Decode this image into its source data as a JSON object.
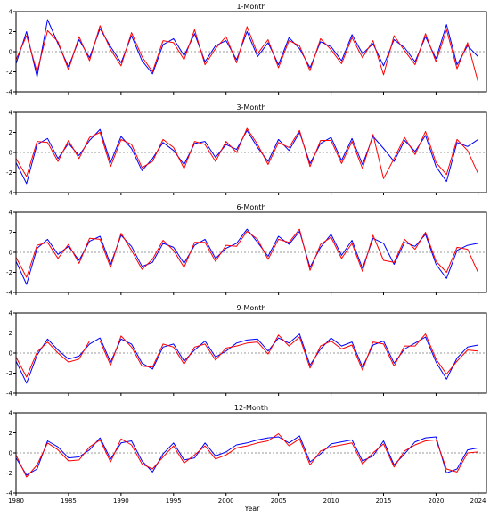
{
  "figure": {
    "xlabel": "Year"
  },
  "chart_data": [
    {
      "type": "line",
      "title": "1-Month",
      "ylim": [
        -4,
        4
      ],
      "yticks": [
        4,
        2,
        0,
        -2,
        -4
      ],
      "xlim": [
        1980,
        2024.8
      ],
      "xticks": [
        1980,
        1985,
        1990,
        1995,
        2000,
        2005,
        2010,
        2015,
        2020,
        2024
      ],
      "grid": false,
      "series": [
        {
          "color": "#0000ff",
          "x": [
            1980,
            1981,
            1982,
            1983,
            1984,
            1985,
            1986,
            1987,
            1988,
            1989,
            1990,
            1991,
            1992,
            1993,
            1994,
            1995,
            1996,
            1997,
            1998,
            1999,
            2000,
            2001,
            2002,
            2003,
            2004,
            2005,
            2006,
            2007,
            2008,
            2009,
            2010,
            2011,
            2012,
            2013,
            2014,
            2015,
            2016,
            2017,
            2018,
            2019,
            2020,
            2021,
            2022,
            2023,
            2024
          ],
          "y": [
            -1.2,
            2.0,
            -2.5,
            3.2,
            0.8,
            -1.5,
            1.2,
            -0.6,
            2.3,
            0.5,
            -1.1,
            1.6,
            -0.9,
            -2.2,
            0.7,
            1.3,
            -0.4,
            1.8,
            -1.0,
            0.6,
            1.1,
            -0.8,
            2.0,
            -0.5,
            0.9,
            -1.3,
            1.4,
            0.3,
            -1.6,
            1.0,
            0.5,
            -0.9,
            1.7,
            -0.2,
            0.8,
            -1.4,
            1.2,
            0.4,
            -1.0,
            1.5,
            -0.7,
            2.7,
            -1.3,
            0.6,
            -0.5
          ]
        },
        {
          "color": "#ff0000",
          "x": [
            1980,
            1981,
            1982,
            1983,
            1984,
            1985,
            1986,
            1987,
            1988,
            1989,
            1990,
            1991,
            1992,
            1993,
            1994,
            1995,
            1996,
            1997,
            1998,
            1999,
            2000,
            2001,
            2002,
            2003,
            2004,
            2005,
            2006,
            2007,
            2008,
            2009,
            2010,
            2011,
            2012,
            2013,
            2014,
            2015,
            2016,
            2017,
            2018,
            2019,
            2020,
            2021,
            2022,
            2023,
            2024
          ],
          "y": [
            -0.8,
            1.6,
            -2.0,
            2.1,
            1.0,
            -1.8,
            1.5,
            -0.9,
            2.6,
            0.2,
            -1.4,
            1.9,
            -0.5,
            -2.0,
            1.1,
            0.9,
            -0.8,
            2.2,
            -1.3,
            0.3,
            1.5,
            -1.1,
            2.5,
            -0.2,
            1.2,
            -1.6,
            1.1,
            0.6,
            -1.9,
            1.3,
            0.2,
            -1.2,
            1.4,
            -0.6,
            1.1,
            -2.3,
            1.6,
            0.1,
            -1.3,
            1.8,
            -1.0,
            2.2,
            -1.7,
            0.9,
            -3.0
          ]
        }
      ]
    },
    {
      "type": "line",
      "title": "3-Month",
      "ylim": [
        -4,
        4
      ],
      "yticks": [
        4,
        2,
        0,
        -2,
        -4
      ],
      "xlim": [
        1980,
        2024.8
      ],
      "xticks": [
        1980,
        1985,
        1990,
        1995,
        2000,
        2005,
        2010,
        2015,
        2020,
        2024
      ],
      "grid": false,
      "series": [
        {
          "color": "#0000ff",
          "x": [
            1980,
            1981,
            1982,
            1983,
            1984,
            1985,
            1986,
            1987,
            1988,
            1989,
            1990,
            1991,
            1992,
            1993,
            1994,
            1995,
            1996,
            1997,
            1998,
            1999,
            2000,
            2001,
            2002,
            2003,
            2004,
            2005,
            2006,
            2007,
            2008,
            2009,
            2010,
            2011,
            2012,
            2013,
            2014,
            2015,
            2016,
            2017,
            2018,
            2019,
            2020,
            2021,
            2022,
            2023,
            2024
          ],
          "y": [
            -1.0,
            -3.1,
            0.8,
            1.4,
            -0.6,
            0.9,
            -0.3,
            1.2,
            2.3,
            -1.0,
            1.6,
            0.4,
            -1.8,
            -0.6,
            1.0,
            0.2,
            -1.2,
            0.9,
            1.1,
            -0.5,
            0.8,
            0.3,
            2.2,
            0.5,
            -0.9,
            1.3,
            0.2,
            2.0,
            -1.1,
            0.9,
            1.5,
            -0.8,
            1.4,
            -1.2,
            1.6,
            0.4,
            -0.9,
            1.2,
            0.1,
            1.7,
            -1.4,
            -2.9,
            1.0,
            0.6,
            1.3
          ]
        },
        {
          "color": "#ff0000",
          "x": [
            1980,
            1981,
            1982,
            1983,
            1984,
            1985,
            1986,
            1987,
            1988,
            1989,
            1990,
            1991,
            1992,
            1993,
            1994,
            1995,
            1996,
            1997,
            1998,
            1999,
            2000,
            2001,
            2002,
            2003,
            2004,
            2005,
            2006,
            2007,
            2008,
            2009,
            2010,
            2011,
            2012,
            2013,
            2014,
            2015,
            2016,
            2017,
            2018,
            2019,
            2020,
            2021,
            2022,
            2023,
            2024
          ],
          "y": [
            -0.6,
            -2.4,
            1.1,
            1.0,
            -0.9,
            1.2,
            -0.6,
            1.5,
            2.0,
            -1.4,
            1.3,
            0.8,
            -1.5,
            -0.9,
            1.3,
            0.5,
            -1.6,
            1.1,
            0.8,
            -0.9,
            1.1,
            0.0,
            2.4,
            0.8,
            -1.2,
            1.0,
            0.5,
            2.2,
            -1.4,
            1.2,
            1.2,
            -1.1,
            1.1,
            -1.6,
            1.8,
            -2.6,
            -0.6,
            1.5,
            -0.2,
            2.1,
            -1.0,
            -2.2,
            1.3,
            0.2,
            -2.1
          ]
        }
      ]
    },
    {
      "type": "line",
      "title": "6-Month",
      "ylim": [
        -4,
        4
      ],
      "yticks": [
        4,
        2,
        0,
        -2,
        -4
      ],
      "xlim": [
        1980,
        2024.8
      ],
      "xticks": [
        1980,
        1985,
        1990,
        1995,
        2000,
        2005,
        2010,
        2015,
        2020,
        2024
      ],
      "grid": false,
      "series": [
        {
          "color": "#0000ff",
          "x": [
            1980,
            1981,
            1982,
            1983,
            1984,
            1985,
            1986,
            1987,
            1988,
            1989,
            1990,
            1991,
            1992,
            1993,
            1994,
            1995,
            1996,
            1997,
            1998,
            1999,
            2000,
            2001,
            2002,
            2003,
            2004,
            2005,
            2006,
            2007,
            2008,
            2009,
            2010,
            2011,
            2012,
            2013,
            2014,
            2015,
            2016,
            2017,
            2018,
            2019,
            2020,
            2021,
            2022,
            2023,
            2024
          ],
          "y": [
            -0.9,
            -3.2,
            0.4,
            1.3,
            -0.2,
            0.6,
            -0.8,
            1.1,
            1.6,
            -1.2,
            1.7,
            0.6,
            -1.4,
            -1.0,
            0.9,
            0.5,
            -1.1,
            0.7,
            1.3,
            -0.6,
            0.4,
            0.9,
            2.3,
            1.0,
            -0.4,
            1.6,
            0.8,
            2.1,
            -1.5,
            0.5,
            1.8,
            -0.3,
            1.2,
            -1.6,
            1.4,
            0.9,
            -1.2,
            1.0,
            0.6,
            1.8,
            -1.2,
            -2.6,
            0.2,
            0.7,
            0.9
          ]
        },
        {
          "color": "#ff0000",
          "x": [
            1980,
            1981,
            1982,
            1983,
            1984,
            1985,
            1986,
            1987,
            1988,
            1989,
            1990,
            1991,
            1992,
            1993,
            1994,
            1995,
            1996,
            1997,
            1998,
            1999,
            2000,
            2001,
            2002,
            2003,
            2004,
            2005,
            2006,
            2007,
            2008,
            2009,
            2010,
            2011,
            2012,
            2013,
            2014,
            2015,
            2016,
            2017,
            2018,
            2019,
            2020,
            2021,
            2022,
            2023,
            2024
          ],
          "y": [
            -0.5,
            -2.5,
            0.7,
            1.0,
            -0.6,
            0.8,
            -1.1,
            1.4,
            1.3,
            -1.5,
            1.9,
            0.2,
            -1.7,
            -0.7,
            1.2,
            0.2,
            -1.5,
            1.0,
            1.0,
            -0.9,
            0.7,
            0.6,
            2.1,
            1.3,
            -0.7,
            1.3,
            1.0,
            2.3,
            -1.8,
            0.8,
            1.5,
            -0.6,
            0.9,
            -1.9,
            1.7,
            -0.8,
            -1.0,
            1.3,
            0.3,
            2.0,
            -0.9,
            -2.0,
            0.5,
            0.3,
            -2.0
          ]
        }
      ]
    },
    {
      "type": "line",
      "title": "9-Month",
      "ylim": [
        -4,
        4
      ],
      "yticks": [
        4,
        2,
        0,
        -2,
        -4
      ],
      "xlim": [
        1980,
        2024.8
      ],
      "xticks": [
        1980,
        1985,
        1990,
        1995,
        2000,
        2005,
        2010,
        2015,
        2020,
        2024
      ],
      "grid": false,
      "series": [
        {
          "color": "#0000ff",
          "x": [
            1980,
            1981,
            1982,
            1983,
            1984,
            1985,
            1986,
            1987,
            1988,
            1989,
            1990,
            1991,
            1992,
            1993,
            1994,
            1995,
            1996,
            1997,
            1998,
            1999,
            2000,
            2001,
            2002,
            2003,
            2004,
            2005,
            2006,
            2007,
            2008,
            2009,
            2010,
            2011,
            2012,
            2013,
            2014,
            2015,
            2016,
            2017,
            2018,
            2019,
            2020,
            2021,
            2022,
            2023,
            2024
          ],
          "y": [
            -0.8,
            -3.0,
            -0.2,
            1.4,
            0.3,
            -0.6,
            -0.3,
            0.9,
            1.5,
            -0.9,
            1.4,
            0.9,
            -1.0,
            -1.6,
            0.6,
            0.9,
            -0.8,
            0.3,
            1.2,
            -0.4,
            0.2,
            1.0,
            1.3,
            1.4,
            0.2,
            1.5,
            1.0,
            1.9,
            -1.2,
            0.4,
            1.5,
            0.7,
            1.1,
            -1.4,
            0.8,
            1.2,
            -1.0,
            0.4,
            1.0,
            1.6,
            -0.9,
            -2.6,
            -0.5,
            0.6,
            0.8
          ]
        },
        {
          "color": "#ff0000",
          "x": [
            1980,
            1981,
            1982,
            1983,
            1984,
            1985,
            1986,
            1987,
            1988,
            1989,
            1990,
            1991,
            1992,
            1993,
            1994,
            1995,
            1996,
            1997,
            1998,
            1999,
            2000,
            2001,
            2002,
            2003,
            2004,
            2005,
            2006,
            2007,
            2008,
            2009,
            2010,
            2011,
            2012,
            2013,
            2014,
            2015,
            2016,
            2017,
            2018,
            2019,
            2020,
            2021,
            2022,
            2023,
            2024
          ],
          "y": [
            -0.4,
            -2.4,
            0.1,
            1.1,
            0.0,
            -0.9,
            -0.6,
            1.2,
            1.2,
            -1.2,
            1.7,
            0.6,
            -1.3,
            -1.4,
            0.9,
            0.6,
            -1.1,
            0.6,
            0.9,
            -0.7,
            0.5,
            0.7,
            1.0,
            1.1,
            -0.1,
            1.8,
            0.7,
            1.6,
            -1.5,
            0.7,
            1.2,
            0.4,
            0.8,
            -1.7,
            1.1,
            0.9,
            -1.3,
            0.7,
            0.7,
            1.9,
            -0.6,
            -2.1,
            -0.8,
            0.3,
            0.2
          ]
        }
      ]
    },
    {
      "type": "line",
      "title": "12-Month",
      "ylim": [
        -4,
        4
      ],
      "yticks": [
        4,
        2,
        0,
        -2,
        -4
      ],
      "xlim": [
        1980,
        2024.8
      ],
      "xticks": [
        1980,
        1985,
        1990,
        1995,
        2000,
        2005,
        2010,
        2015,
        2020,
        2024
      ],
      "grid": false,
      "series": [
        {
          "color": "#0000ff",
          "x": [
            1980,
            1981,
            1982,
            1983,
            1984,
            1985,
            1986,
            1987,
            1988,
            1989,
            1990,
            1991,
            1992,
            1993,
            1994,
            1995,
            1996,
            1997,
            1998,
            1999,
            2000,
            2001,
            2002,
            2003,
            2004,
            2005,
            2006,
            2007,
            2008,
            2009,
            2010,
            2011,
            2012,
            2013,
            2014,
            2015,
            2016,
            2017,
            2018,
            2019,
            2020,
            2021,
            2022,
            2023,
            2024
          ],
          "y": [
            -0.5,
            -2.2,
            -1.6,
            1.2,
            0.6,
            -0.5,
            -0.4,
            0.3,
            1.5,
            -0.6,
            1.0,
            1.2,
            -0.8,
            -1.9,
            -0.1,
            1.0,
            -0.7,
            -0.5,
            1.0,
            -0.3,
            0.1,
            0.8,
            1.0,
            1.3,
            1.5,
            1.6,
            1.0,
            1.7,
            -0.9,
            -0.1,
            0.9,
            1.1,
            1.3,
            -0.8,
            -0.3,
            1.2,
            -1.2,
            -0.1,
            1.1,
            1.5,
            1.6,
            -2.0,
            -1.6,
            0.3,
            0.5
          ]
        },
        {
          "color": "#ff0000",
          "x": [
            1980,
            1981,
            1982,
            1983,
            1984,
            1985,
            1986,
            1987,
            1988,
            1989,
            1990,
            1991,
            1992,
            1993,
            1994,
            1995,
            1996,
            1997,
            1998,
            1999,
            2000,
            2001,
            2002,
            2003,
            2004,
            2005,
            2006,
            2007,
            2008,
            2009,
            2010,
            2011,
            2012,
            2013,
            2014,
            2015,
            2016,
            2017,
            2018,
            2019,
            2020,
            2021,
            2022,
            2023,
            2024
          ],
          "y": [
            -0.2,
            -2.4,
            -1.2,
            1.0,
            0.3,
            -0.8,
            -0.7,
            0.6,
            1.3,
            -0.9,
            1.4,
            0.8,
            -1.1,
            -1.6,
            -0.4,
            0.7,
            -1.0,
            -0.2,
            0.7,
            -0.6,
            -0.2,
            0.5,
            0.7,
            1.0,
            1.2,
            1.9,
            0.7,
            1.4,
            -1.2,
            0.2,
            0.6,
            0.8,
            1.0,
            -1.1,
            0.0,
            0.9,
            -1.4,
            0.2,
            0.8,
            1.2,
            1.3,
            -1.6,
            -1.9,
            0.0,
            0.1
          ]
        }
      ]
    }
  ]
}
